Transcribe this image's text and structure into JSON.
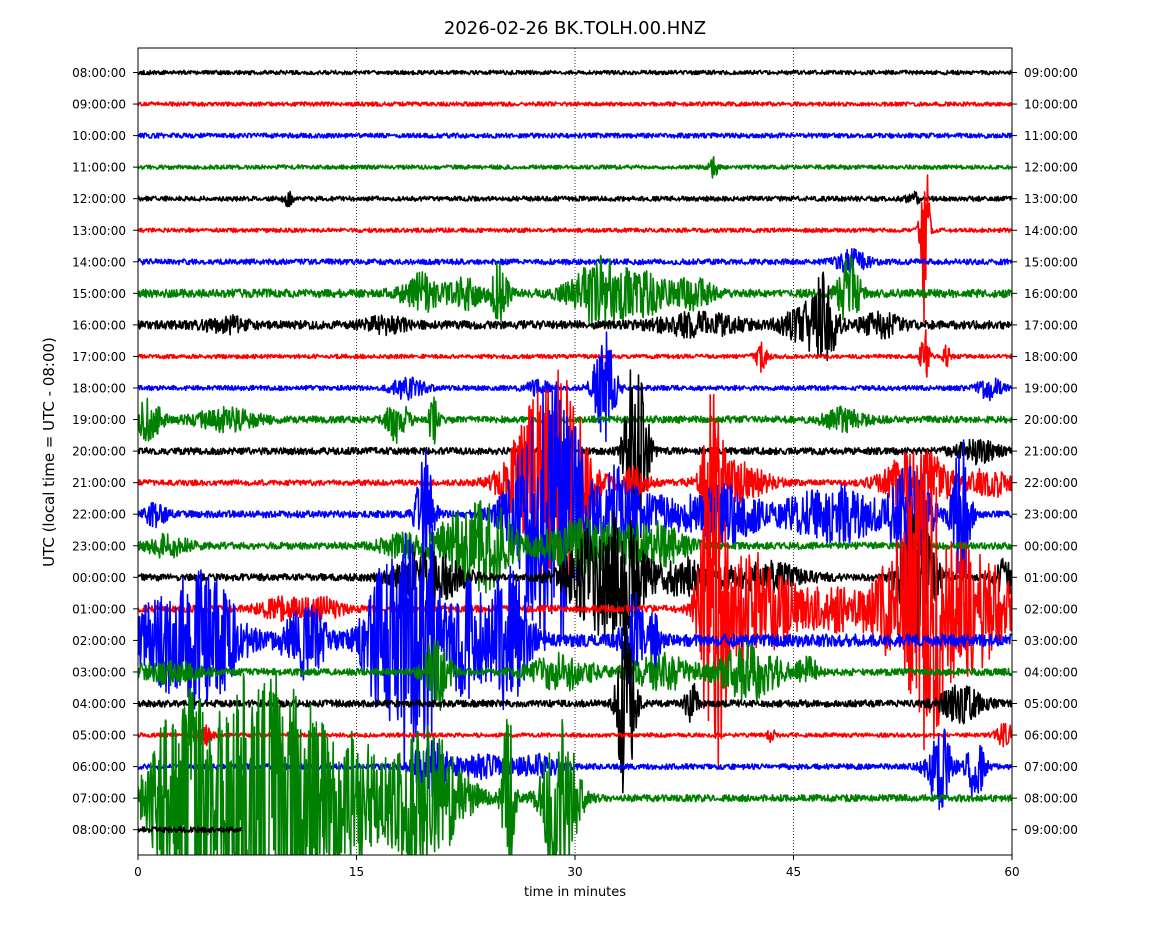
{
  "chart_data": {
    "type": "line",
    "title": "2026-02-26 BK.TOLH.00.HNZ",
    "xlabel": "time in minutes",
    "ylabel": "UTC (local time = UTC - 08:00)",
    "xlim": [
      0,
      60
    ],
    "x_ticks": [
      "0",
      "15",
      "30",
      "45",
      "60"
    ],
    "vertical_gridlines_at_minutes": [
      15,
      30,
      45
    ],
    "grid": "dotted vertical",
    "color_cycle": [
      "#000000",
      "#ff0000",
      "#0000ff",
      "#008000"
    ],
    "left_labels": [
      "08:00:00",
      "09:00:00",
      "10:00:00",
      "11:00:00",
      "12:00:00",
      "13:00:00",
      "14:00:00",
      "15:00:00",
      "16:00:00",
      "17:00:00",
      "18:00:00",
      "19:00:00",
      "20:00:00",
      "21:00:00",
      "22:00:00",
      "23:00:00",
      "00:00:00",
      "01:00:00",
      "02:00:00",
      "03:00:00",
      "04:00:00",
      "05:00:00",
      "06:00:00",
      "07:00:00",
      "08:00:00"
    ],
    "right_labels": [
      "09:00:00",
      "10:00:00",
      "11:00:00",
      "12:00:00",
      "13:00:00",
      "14:00:00",
      "15:00:00",
      "16:00:00",
      "17:00:00",
      "18:00:00",
      "19:00:00",
      "20:00:00",
      "21:00:00",
      "22:00:00",
      "23:00:00",
      "00:00:00",
      "01:00:00",
      "02:00:00",
      "03:00:00",
      "04:00:00",
      "05:00:00",
      "06:00:00",
      "07:00:00",
      "08:00:00",
      "09:00:00"
    ],
    "traces": [
      {
        "end_min": 60,
        "base": 0.6,
        "bursts": []
      },
      {
        "end_min": 60,
        "base": 0.6,
        "bursts": []
      },
      {
        "end_min": 60,
        "base": 0.7,
        "bursts": []
      },
      {
        "end_min": 60,
        "base": 0.6,
        "bursts": [
          [
            39.5,
            0.2,
            3
          ]
        ]
      },
      {
        "end_min": 60,
        "base": 0.7,
        "bursts": [
          [
            10.3,
            0.2,
            2
          ],
          [
            53.2,
            0.4,
            1.5
          ]
        ]
      },
      {
        "end_min": 60,
        "base": 0.6,
        "bursts": [
          [
            54.0,
            0.2,
            28
          ]
        ]
      },
      {
        "end_min": 60,
        "base": 0.8,
        "bursts": [
          [
            49.0,
            0.8,
            3
          ]
        ]
      },
      {
        "end_min": 60,
        "base": 1.2,
        "bursts": [
          [
            19.5,
            1.0,
            5
          ],
          [
            22.5,
            0.8,
            4
          ],
          [
            24.8,
            0.4,
            9
          ],
          [
            32.0,
            1.5,
            10
          ],
          [
            35.2,
            0.8,
            5
          ],
          [
            38.0,
            1.0,
            4
          ],
          [
            48.8,
            0.5,
            10
          ]
        ]
      },
      {
        "end_min": 60,
        "base": 1.2,
        "bursts": [
          [
            6.0,
            1.0,
            2
          ],
          [
            17.0,
            1.0,
            2
          ],
          [
            38.5,
            2.0,
            3
          ],
          [
            45.5,
            1.0,
            4
          ],
          [
            47.0,
            0.6,
            14
          ],
          [
            51.0,
            1.0,
            3
          ]
        ]
      },
      {
        "end_min": 60,
        "base": 0.6,
        "bursts": [
          [
            42.8,
            0.3,
            4
          ],
          [
            54.0,
            0.2,
            8
          ],
          [
            55.5,
            0.2,
            3
          ]
        ]
      },
      {
        "end_min": 60,
        "base": 0.7,
        "bursts": [
          [
            18.5,
            0.8,
            3
          ],
          [
            27.5,
            0.6,
            2
          ],
          [
            32.0,
            0.5,
            18
          ],
          [
            58.5,
            0.6,
            3
          ]
        ]
      },
      {
        "end_min": 60,
        "base": 1.0,
        "bursts": [
          [
            0.7,
            0.6,
            6
          ],
          [
            6.0,
            1.5,
            3
          ],
          [
            17.8,
            0.5,
            6
          ],
          [
            20.3,
            0.2,
            10
          ],
          [
            48.5,
            1.0,
            3
          ]
        ]
      },
      {
        "end_min": 60,
        "base": 1.0,
        "bursts": [
          [
            34.2,
            0.5,
            32
          ],
          [
            57.5,
            1.0,
            3
          ]
        ]
      },
      {
        "end_min": 60,
        "base": 0.8,
        "bursts": [
          [
            27.5,
            1.5,
            22
          ],
          [
            29.5,
            1.2,
            20
          ],
          [
            34.0,
            0.8,
            4
          ],
          [
            39.5,
            0.4,
            34
          ],
          [
            41.0,
            1.5,
            6
          ],
          [
            53.5,
            1.5,
            10
          ],
          [
            58.5,
            1.0,
            4
          ]
        ]
      },
      {
        "end_min": 60,
        "base": 1.0,
        "bursts": [
          [
            1.2,
            0.5,
            3
          ],
          [
            19.7,
            0.4,
            18
          ],
          [
            27.5,
            1.5,
            20
          ],
          [
            29.0,
            1.5,
            25
          ],
          [
            33.0,
            0.8,
            12
          ],
          [
            36.0,
            2.0,
            5
          ],
          [
            40.5,
            1.5,
            8
          ],
          [
            45.5,
            1.5,
            4
          ],
          [
            48.5,
            1.5,
            8
          ],
          [
            53.0,
            1.0,
            15
          ],
          [
            56.5,
            0.4,
            25
          ]
        ]
      },
      {
        "end_min": 60,
        "base": 1.0,
        "bursts": [
          [
            2.0,
            1.0,
            3
          ],
          [
            18.0,
            1.0,
            3
          ],
          [
            22.5,
            1.5,
            10
          ],
          [
            24.5,
            1.0,
            8
          ],
          [
            30.5,
            2.0,
            8
          ],
          [
            35.5,
            1.5,
            6
          ]
        ]
      },
      {
        "end_min": 60,
        "base": 1.0,
        "bursts": [
          [
            20.0,
            1.5,
            8
          ],
          [
            31.5,
            1.5,
            14
          ],
          [
            33.5,
            1.0,
            12
          ],
          [
            37.5,
            1.5,
            5
          ],
          [
            43.0,
            2.0,
            4
          ],
          [
            53.5,
            0.8,
            20
          ],
          [
            59.5,
            0.5,
            5
          ]
        ]
      },
      {
        "end_min": 60,
        "base": 1.0,
        "bursts": [
          [
            9.8,
            1.0,
            3
          ],
          [
            12.5,
            1.0,
            3
          ],
          [
            39.5,
            0.6,
            45
          ],
          [
            41.5,
            1.5,
            15
          ],
          [
            44.0,
            1.5,
            6
          ],
          [
            48.0,
            1.5,
            6
          ],
          [
            52.5,
            1.5,
            15
          ],
          [
            54.0,
            1.0,
            30
          ],
          [
            57.0,
            2.0,
            18
          ]
        ]
      },
      {
        "end_min": 60,
        "base": 1.8,
        "bursts": [
          [
            2.0,
            2.0,
            12
          ],
          [
            5.0,
            1.5,
            14
          ],
          [
            11.5,
            1.0,
            10
          ],
          [
            16.8,
            1.0,
            20
          ],
          [
            18.5,
            0.6,
            30
          ],
          [
            20.0,
            0.5,
            32
          ],
          [
            22.5,
            1.0,
            16
          ],
          [
            25.5,
            1.0,
            20
          ],
          [
            34.0,
            0.5,
            15
          ],
          [
            35.5,
            0.3,
            8
          ]
        ]
      },
      {
        "end_min": 60,
        "base": 1.0,
        "bursts": [
          [
            2.0,
            1.5,
            3
          ],
          [
            20.5,
            0.6,
            12
          ],
          [
            29.0,
            1.5,
            5
          ],
          [
            36.0,
            1.5,
            5
          ],
          [
            42.0,
            1.5,
            8
          ],
          [
            46.0,
            0.5,
            4
          ]
        ]
      },
      {
        "end_min": 60,
        "base": 1.0,
        "bursts": [
          [
            33.5,
            0.4,
            30
          ],
          [
            38.0,
            0.3,
            6
          ],
          [
            56.5,
            1.0,
            5
          ]
        ]
      },
      {
        "end_min": 60,
        "base": 0.6,
        "bursts": [
          [
            4.5,
            0.4,
            3
          ],
          [
            43.5,
            0.2,
            2
          ],
          [
            59.5,
            0.5,
            3
          ]
        ]
      },
      {
        "end_min": 60,
        "base": 0.8,
        "bursts": [
          [
            20.0,
            0.8,
            8
          ],
          [
            23.5,
            1.5,
            3
          ],
          [
            27.5,
            1.0,
            3
          ],
          [
            55.0,
            0.6,
            12
          ],
          [
            57.5,
            0.4,
            10
          ]
        ]
      },
      {
        "end_min": 60,
        "base": 1.0,
        "bursts": [
          [
            2.8,
            1.5,
            26
          ],
          [
            7.5,
            2.5,
            25
          ],
          [
            11.0,
            3.0,
            22
          ],
          [
            15.0,
            0.8,
            8
          ],
          [
            19.5,
            2.0,
            20
          ],
          [
            25.4,
            0.3,
            25
          ],
          [
            29.0,
            0.8,
            27
          ]
        ]
      },
      {
        "end_min": 7.1,
        "base": 0.8,
        "bursts": []
      }
    ]
  }
}
